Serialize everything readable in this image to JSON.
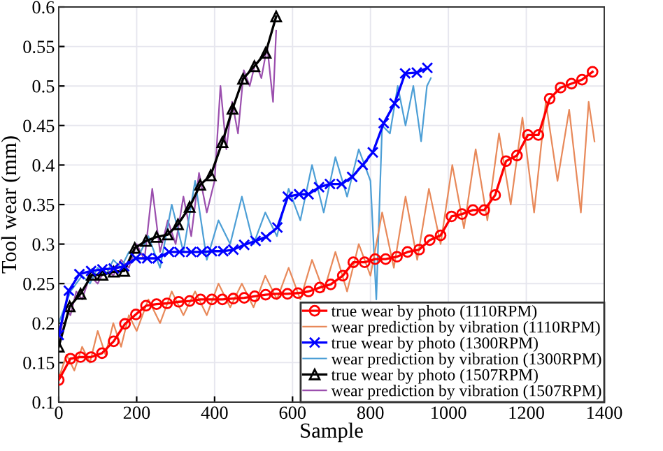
{
  "chart_data": {
    "type": "line",
    "xlabel": "Sample",
    "ylabel": "Tool wear (mm)",
    "xlim": [
      0,
      1400
    ],
    "xticks": [
      0,
      200,
      400,
      600,
      800,
      1000,
      1200,
      1400
    ],
    "ylim": [
      0.1,
      0.6
    ],
    "yticks": [
      0.1,
      0.15,
      0.2,
      0.25,
      0.3,
      0.35,
      0.4,
      0.45,
      0.5,
      0.55,
      0.6
    ],
    "grid": true,
    "legend": "bottom right",
    "series": [
      {
        "name": "true wear by photo (1110RPM)",
        "color": "#ff0000",
        "marker": "circle",
        "x": [
          0,
          30,
          56,
          83,
          111,
          141,
          170,
          198,
          224,
          251,
          278,
          308,
          336,
          364,
          393,
          420,
          448,
          476,
          503,
          531,
          558,
          587,
          614,
          641,
          670,
          698,
          729,
          756,
          785,
          812,
          839,
          868,
          895,
          925,
          952,
          980,
          1008,
          1035,
          1063,
          1092,
          1120,
          1148,
          1176,
          1204,
          1231,
          1260,
          1288,
          1316,
          1343,
          1370
        ],
        "values": [
          0.128,
          0.155,
          0.157,
          0.157,
          0.162,
          0.177,
          0.199,
          0.211,
          0.222,
          0.224,
          0.225,
          0.227,
          0.228,
          0.23,
          0.23,
          0.23,
          0.231,
          0.232,
          0.234,
          0.236,
          0.237,
          0.237,
          0.238,
          0.24,
          0.245,
          0.249,
          0.26,
          0.277,
          0.277,
          0.281,
          0.281,
          0.284,
          0.29,
          0.293,
          0.305,
          0.311,
          0.335,
          0.338,
          0.343,
          0.343,
          0.362,
          0.405,
          0.412,
          0.438,
          0.438,
          0.484,
          0.498,
          0.503,
          0.508,
          0.518
        ]
      },
      {
        "name": "wear prediction by vibration (1110RPM)",
        "color": "#e8895a",
        "marker": "none",
        "x": [
          0,
          20,
          40,
          60,
          80,
          100,
          120,
          140,
          160,
          180,
          200,
          230,
          260,
          290,
          320,
          350,
          380,
          410,
          440,
          470,
          500,
          530,
          560,
          590,
          620,
          650,
          680,
          710,
          740,
          770,
          800,
          830,
          860,
          890,
          920,
          950,
          980,
          1010,
          1040,
          1070,
          1100,
          1130,
          1160,
          1190,
          1220,
          1250,
          1280,
          1310,
          1340,
          1360,
          1375
        ],
        "values": [
          0.13,
          0.16,
          0.14,
          0.17,
          0.15,
          0.19,
          0.16,
          0.2,
          0.17,
          0.21,
          0.19,
          0.23,
          0.2,
          0.24,
          0.21,
          0.24,
          0.21,
          0.25,
          0.22,
          0.25,
          0.22,
          0.26,
          0.23,
          0.27,
          0.23,
          0.28,
          0.24,
          0.29,
          0.24,
          0.3,
          0.26,
          0.34,
          0.27,
          0.36,
          0.28,
          0.37,
          0.3,
          0.4,
          0.32,
          0.42,
          0.33,
          0.44,
          0.35,
          0.46,
          0.34,
          0.48,
          0.38,
          0.47,
          0.34,
          0.48,
          0.43
        ]
      },
      {
        "name": "true wear by photo (1300RPM)",
        "color": "#0000ff",
        "marker": "cross",
        "x": [
          0,
          26,
          53,
          83,
          112,
          141,
          168,
          198,
          227,
          254,
          283,
          310,
          340,
          367,
          393,
          422,
          448,
          476,
          505,
          532,
          561,
          588,
          617,
          641,
          668,
          696,
          726,
          753,
          780,
          806,
          834,
          862,
          889,
          919,
          946
        ],
        "values": [
          0.185,
          0.241,
          0.262,
          0.266,
          0.268,
          0.269,
          0.272,
          0.282,
          0.282,
          0.282,
          0.29,
          0.29,
          0.29,
          0.29,
          0.291,
          0.291,
          0.293,
          0.299,
          0.304,
          0.309,
          0.321,
          0.36,
          0.363,
          0.363,
          0.372,
          0.376,
          0.376,
          0.385,
          0.4,
          0.416,
          0.453,
          0.478,
          0.516,
          0.517,
          0.523
        ]
      },
      {
        "name": "wear prediction by vibration (1300RPM)",
        "color": "#4d9fd6",
        "marker": "none",
        "x": [
          0,
          15,
          30,
          45,
          60,
          80,
          100,
          120,
          140,
          160,
          180,
          200,
          230,
          260,
          290,
          320,
          350,
          380,
          410,
          440,
          470,
          500,
          530,
          560,
          590,
          620,
          650,
          680,
          710,
          740,
          770,
          800,
          815,
          830,
          850,
          870,
          890,
          910,
          930,
          945,
          955
        ],
        "values": [
          0.2,
          0.22,
          0.24,
          0.25,
          0.26,
          0.25,
          0.27,
          0.26,
          0.28,
          0.27,
          0.29,
          0.28,
          0.31,
          0.27,
          0.35,
          0.29,
          0.38,
          0.28,
          0.33,
          0.3,
          0.36,
          0.3,
          0.34,
          0.31,
          0.37,
          0.33,
          0.4,
          0.34,
          0.41,
          0.36,
          0.42,
          0.38,
          0.23,
          0.45,
          0.44,
          0.5,
          0.45,
          0.5,
          0.43,
          0.5,
          0.51
        ]
      },
      {
        "name": "true wear by photo (1507RPM)",
        "color": "#000000",
        "marker": "triangle",
        "x": [
          0,
          28,
          56,
          85,
          112,
          141,
          168,
          195,
          224,
          251,
          280,
          306,
          336,
          363,
          390,
          420,
          446,
          473,
          502,
          531,
          558
        ],
        "values": [
          0.17,
          0.221,
          0.237,
          0.261,
          0.261,
          0.265,
          0.266,
          0.295,
          0.304,
          0.309,
          0.312,
          0.325,
          0.347,
          0.375,
          0.387,
          0.429,
          0.471,
          0.509,
          0.525,
          0.542,
          0.588
        ]
      },
      {
        "name": "wear prediction by vibration (1507RPM)",
        "color": "#9b4fae",
        "marker": "none",
        "x": [
          0,
          15,
          30,
          45,
          60,
          80,
          100,
          120,
          140,
          160,
          180,
          200,
          220,
          240,
          260,
          280,
          300,
          320,
          340,
          360,
          380,
          400,
          415,
          430,
          445,
          460,
          475,
          490,
          505,
          520,
          535,
          550,
          558
        ],
        "values": [
          0.17,
          0.22,
          0.21,
          0.24,
          0.23,
          0.26,
          0.25,
          0.27,
          0.26,
          0.28,
          0.27,
          0.3,
          0.28,
          0.37,
          0.29,
          0.33,
          0.3,
          0.36,
          0.31,
          0.39,
          0.34,
          0.38,
          0.5,
          0.42,
          0.48,
          0.44,
          0.52,
          0.5,
          0.53,
          0.51,
          0.55,
          0.48,
          0.57
        ]
      }
    ]
  }
}
